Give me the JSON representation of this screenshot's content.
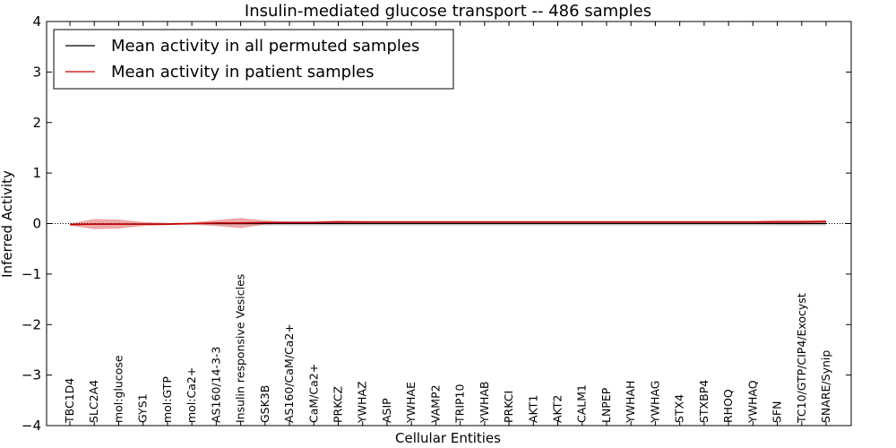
{
  "chart_data": {
    "type": "line",
    "title": "Insulin-mediated glucose transport -- 486 samples",
    "xlabel": "Cellular Entities",
    "ylabel": "Inferred Activity",
    "ylim": [
      -4,
      4
    ],
    "yticks": [
      -4,
      -3,
      -2,
      -1,
      0,
      1,
      2,
      3,
      4
    ],
    "ytick_labels": [
      "−4",
      "−3",
      "−2",
      "−1",
      "0",
      "1",
      "2",
      "3",
      "4"
    ],
    "legend_position": "upper-left",
    "categories": [
      "TBC1D4",
      "SLC2A4",
      "mol:glucose",
      "GYS1",
      "mol:GTP",
      "mol:Ca2+",
      "AS160/14-3-3",
      "Insulin responsive Vesicles",
      "GSK3B",
      "AS160/CaM/Ca2+",
      "CaM/Ca2+",
      "PRKCZ",
      "YWHAZ",
      "ASIP",
      "YWHAE",
      "VAMP2",
      "TRIP10",
      "YWHAB",
      "PRKCI",
      "AKT1",
      "AKT2",
      "CALM1",
      "LNPEP",
      "YWHAH",
      "YWHAG",
      "STX4",
      "STXBP4",
      "RHOQ",
      "YWHAQ",
      "SFN",
      "TC10/GTP/CIP4/Exocyst",
      "SNARE/Synip"
    ],
    "series": [
      {
        "name": "Mean activity in all permuted samples",
        "color": "#000000",
        "values": [
          -0.02,
          -0.01,
          -0.01,
          -0.01,
          -0.01,
          0.0,
          0.0,
          0.0,
          0.0,
          0.0,
          0.0,
          0.0,
          0.0,
          0.0,
          0.0,
          0.0,
          0.0,
          0.0,
          0.0,
          0.0,
          0.0,
          0.0,
          0.0,
          0.0,
          0.0,
          0.0,
          0.0,
          0.0,
          0.0,
          0.0,
          0.0,
          0.0
        ],
        "band": [
          0.02,
          0.02,
          0.02,
          0.02,
          0.02,
          0.02,
          0.03,
          0.03,
          0.04,
          0.05,
          0.05,
          0.05,
          0.05,
          0.05,
          0.05,
          0.05,
          0.05,
          0.05,
          0.05,
          0.05,
          0.05,
          0.05,
          0.05,
          0.05,
          0.05,
          0.05,
          0.05,
          0.05,
          0.05,
          0.05,
          0.05,
          0.05
        ]
      },
      {
        "name": "Mean activity in patient samples",
        "color": "#cc0000",
        "values": [
          -0.02,
          -0.01,
          -0.01,
          -0.01,
          -0.01,
          0.0,
          0.01,
          0.01,
          0.02,
          0.02,
          0.02,
          0.03,
          0.03,
          0.03,
          0.03,
          0.03,
          0.03,
          0.03,
          0.03,
          0.03,
          0.03,
          0.03,
          0.03,
          0.03,
          0.03,
          0.03,
          0.03,
          0.03,
          0.03,
          0.03,
          0.03,
          0.04
        ],
        "band": [
          0.02,
          0.1,
          0.09,
          0.04,
          0.02,
          0.02,
          0.06,
          0.1,
          0.04,
          0.02,
          0.02,
          0.03,
          0.02,
          0.02,
          0.02,
          0.02,
          0.02,
          0.02,
          0.02,
          0.02,
          0.02,
          0.02,
          0.02,
          0.02,
          0.02,
          0.02,
          0.02,
          0.02,
          0.02,
          0.04,
          0.04,
          0.03
        ]
      }
    ]
  }
}
